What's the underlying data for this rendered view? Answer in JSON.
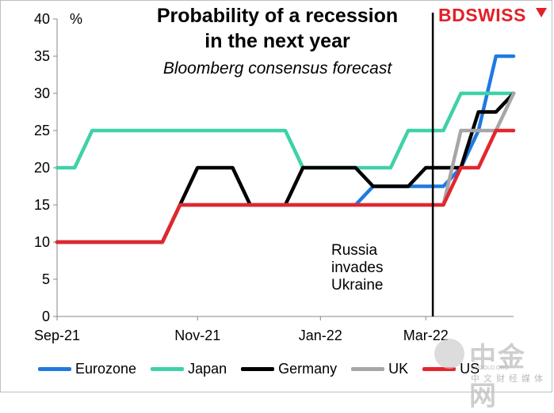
{
  "chart_data": {
    "type": "line",
    "title_lines": [
      "Probability of a recession",
      "in the next year"
    ],
    "subtitle": "Bloomberg consensus forecast",
    "ylabel": "%",
    "ylim": [
      0,
      40
    ],
    "yticks": [
      0,
      5,
      10,
      15,
      20,
      25,
      30,
      35,
      40
    ],
    "xlim": [
      0,
      26
    ],
    "xticks": [
      {
        "label": "Sep-21",
        "x": 0
      },
      {
        "label": "Nov-21",
        "x": 8
      },
      {
        "label": "Jan-22",
        "x": 15
      },
      {
        "label": "Mar-22",
        "x": 21
      }
    ],
    "x": [
      0,
      1,
      2,
      3,
      4,
      5,
      6,
      7,
      8,
      9,
      10,
      11,
      12,
      13,
      14,
      15,
      16,
      17,
      18,
      19,
      20,
      21,
      22,
      23,
      24,
      25,
      26
    ],
    "series": [
      {
        "name": "Eurozone",
        "color": "#1f7ae0",
        "values": [
          10,
          10,
          10,
          10,
          10,
          10,
          10,
          15,
          15,
          15,
          15,
          15,
          15,
          15,
          15,
          15,
          15,
          15,
          17.5,
          17.5,
          17.5,
          17.5,
          17.5,
          20,
          25,
          35,
          35
        ]
      },
      {
        "name": "Japan",
        "color": "#3fd1a9",
        "values": [
          20,
          20,
          25,
          25,
          25,
          25,
          25,
          25,
          25,
          25,
          25,
          25,
          25,
          25,
          20,
          20,
          20,
          20,
          20,
          20,
          25,
          25,
          25,
          30,
          30,
          30,
          30
        ]
      },
      {
        "name": "Germany",
        "color": "#000000",
        "values": [
          10,
          10,
          10,
          10,
          10,
          10,
          10,
          15,
          20,
          20,
          20,
          15,
          15,
          15,
          20,
          20,
          20,
          20,
          17.5,
          17.5,
          17.5,
          20,
          20,
          20,
          27.5,
          27.5,
          30
        ]
      },
      {
        "name": "UK",
        "color": "#a6a6a6",
        "values": [
          10,
          10,
          10,
          10,
          10,
          10,
          10,
          15,
          15,
          15,
          15,
          15,
          15,
          15,
          15,
          15,
          15,
          15,
          15,
          15,
          15,
          15,
          15,
          25,
          25,
          25,
          30
        ]
      },
      {
        "name": "US",
        "color": "#e3262e",
        "values": [
          10,
          10,
          10,
          10,
          10,
          10,
          10,
          15,
          15,
          15,
          15,
          15,
          15,
          15,
          15,
          15,
          15,
          15,
          15,
          15,
          15,
          15,
          15,
          20,
          20,
          25,
          25
        ]
      }
    ],
    "vline": {
      "x": 21.4
    },
    "annotation_lines": [
      "Russia",
      "invades",
      "Ukraine"
    ],
    "legend_position": "bottom"
  },
  "logo_text": "BDSWISS",
  "watermark": {
    "text": "中金网",
    "url": "CNGOLD.ORG",
    "sub": "中文财经媒体"
  }
}
